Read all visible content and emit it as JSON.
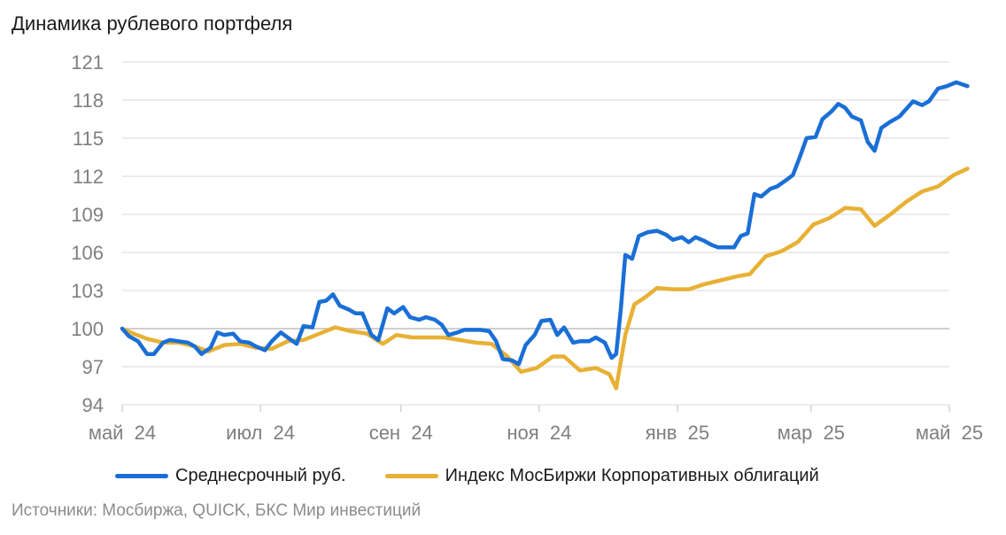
{
  "title": "Динамика рублевого портфеля",
  "source": "Источники: Мосбиржа, QUICK, БКС Мир инвестиций",
  "colors": {
    "series1": "#1a6fd6",
    "series2": "#e8b135",
    "grid": "#d9d9d9"
  },
  "chart_data": {
    "type": "line",
    "grid": true,
    "legend_placement": "bottom",
    "ylim": [
      94,
      121
    ],
    "yticks": [
      94,
      97,
      100,
      103,
      106,
      109,
      112,
      115,
      118,
      121
    ],
    "xlim": [
      "2024-05-01",
      "2025-05-01"
    ],
    "xticks": [
      {
        "date": "2024-05-01",
        "label": "май  24"
      },
      {
        "date": "2024-07-01",
        "label": "июл  24"
      },
      {
        "date": "2024-09-01",
        "label": "сен  24"
      },
      {
        "date": "2024-11-01",
        "label": "ноя  24"
      },
      {
        "date": "2025-01-01",
        "label": "янв  25"
      },
      {
        "date": "2025-03-01",
        "label": "мар  25"
      },
      {
        "date": "2025-05-01",
        "label": "май  25"
      }
    ],
    "series": [
      {
        "name": "Среднесрочный руб.",
        "points": [
          [
            "2024-05-01",
            100.0
          ],
          [
            "2024-05-04",
            99.4
          ],
          [
            "2024-05-08",
            99.0
          ],
          [
            "2024-05-12",
            98.0
          ],
          [
            "2024-05-15",
            98.0
          ],
          [
            "2024-05-19",
            98.9
          ],
          [
            "2024-05-22",
            99.1
          ],
          [
            "2024-05-26",
            99.0
          ],
          [
            "2024-05-30",
            98.9
          ],
          [
            "2024-06-02",
            98.6
          ],
          [
            "2024-06-05",
            98.0
          ],
          [
            "2024-06-09",
            98.5
          ],
          [
            "2024-06-12",
            99.7
          ],
          [
            "2024-06-15",
            99.5
          ],
          [
            "2024-06-19",
            99.6
          ],
          [
            "2024-06-22",
            99.0
          ],
          [
            "2024-06-26",
            98.9
          ],
          [
            "2024-06-29",
            98.6
          ],
          [
            "2024-07-03",
            98.3
          ],
          [
            "2024-07-06",
            99.0
          ],
          [
            "2024-07-10",
            99.7
          ],
          [
            "2024-07-13",
            99.3
          ],
          [
            "2024-07-17",
            98.8
          ],
          [
            "2024-07-20",
            100.2
          ],
          [
            "2024-07-24",
            100.1
          ],
          [
            "2024-07-27",
            102.1
          ],
          [
            "2024-07-30",
            102.2
          ],
          [
            "2024-08-02",
            102.7
          ],
          [
            "2024-08-05",
            101.8
          ],
          [
            "2024-08-09",
            101.5
          ],
          [
            "2024-08-12",
            101.2
          ],
          [
            "2024-08-15",
            101.2
          ],
          [
            "2024-08-19",
            99.5
          ],
          [
            "2024-08-22",
            99.1
          ],
          [
            "2024-08-26",
            101.6
          ],
          [
            "2024-08-29",
            101.2
          ],
          [
            "2024-09-02",
            101.7
          ],
          [
            "2024-09-05",
            100.9
          ],
          [
            "2024-09-09",
            100.7
          ],
          [
            "2024-09-12",
            100.9
          ],
          [
            "2024-09-16",
            100.7
          ],
          [
            "2024-09-19",
            100.3
          ],
          [
            "2024-09-22",
            99.5
          ],
          [
            "2024-09-26",
            99.7
          ],
          [
            "2024-09-29",
            99.9
          ],
          [
            "2024-10-03",
            99.9
          ],
          [
            "2024-10-06",
            99.9
          ],
          [
            "2024-10-10",
            99.8
          ],
          [
            "2024-10-13",
            99.0
          ],
          [
            "2024-10-16",
            97.6
          ],
          [
            "2024-10-20",
            97.5
          ],
          [
            "2024-10-23",
            97.2
          ],
          [
            "2024-10-26",
            98.7
          ],
          [
            "2024-10-30",
            99.5
          ],
          [
            "2024-11-02",
            100.6
          ],
          [
            "2024-11-06",
            100.7
          ],
          [
            "2024-11-09",
            99.5
          ],
          [
            "2024-11-12",
            100.1
          ],
          [
            "2024-11-16",
            98.9
          ],
          [
            "2024-11-19",
            99.0
          ],
          [
            "2024-11-23",
            99.0
          ],
          [
            "2024-11-26",
            99.3
          ],
          [
            "2024-11-30",
            98.9
          ],
          [
            "2024-12-03",
            97.7
          ],
          [
            "2024-12-05",
            98.0
          ],
          [
            "2024-12-07",
            101.5
          ],
          [
            "2024-12-09",
            105.8
          ],
          [
            "2024-12-12",
            105.5
          ],
          [
            "2024-12-15",
            107.3
          ],
          [
            "2024-12-19",
            107.6
          ],
          [
            "2024-12-23",
            107.7
          ],
          [
            "2024-12-27",
            107.4
          ],
          [
            "2024-12-30",
            107.0
          ],
          [
            "2025-01-03",
            107.2
          ],
          [
            "2025-01-06",
            106.8
          ],
          [
            "2025-01-09",
            107.2
          ],
          [
            "2025-01-13",
            106.9
          ],
          [
            "2025-01-16",
            106.6
          ],
          [
            "2025-01-19",
            106.4
          ],
          [
            "2025-01-22",
            106.4
          ],
          [
            "2025-01-26",
            106.4
          ],
          [
            "2025-01-29",
            107.3
          ],
          [
            "2025-02-01",
            107.5
          ],
          [
            "2025-02-04",
            110.6
          ],
          [
            "2025-02-07",
            110.4
          ],
          [
            "2025-02-11",
            111.0
          ],
          [
            "2025-02-14",
            111.2
          ],
          [
            "2025-02-18",
            111.7
          ],
          [
            "2025-02-21",
            112.1
          ],
          [
            "2025-02-24",
            113.5
          ],
          [
            "2025-02-27",
            115.0
          ],
          [
            "2025-03-03",
            115.1
          ],
          [
            "2025-03-06",
            116.5
          ],
          [
            "2025-03-10",
            117.1
          ],
          [
            "2025-03-13",
            117.7
          ],
          [
            "2025-03-16",
            117.4
          ],
          [
            "2025-03-19",
            116.7
          ],
          [
            "2025-03-23",
            116.4
          ],
          [
            "2025-03-26",
            114.7
          ],
          [
            "2025-03-29",
            114.0
          ],
          [
            "2025-04-01",
            115.8
          ],
          [
            "2025-04-05",
            116.3
          ],
          [
            "2025-04-09",
            116.7
          ],
          [
            "2025-04-12",
            117.3
          ],
          [
            "2025-04-15",
            117.9
          ],
          [
            "2025-04-19",
            117.6
          ],
          [
            "2025-04-22",
            117.9
          ],
          [
            "2025-04-26",
            118.9
          ],
          [
            "2025-04-30",
            119.1
          ],
          [
            "2025-05-04",
            119.4
          ],
          [
            "2025-05-09",
            119.1
          ]
        ]
      },
      {
        "name": "Индекс МосБиржи Корпоративных облигаций",
        "points": [
          [
            "2024-05-01",
            100.0
          ],
          [
            "2024-05-06",
            99.6
          ],
          [
            "2024-05-12",
            99.2
          ],
          [
            "2024-05-19",
            98.9
          ],
          [
            "2024-05-26",
            98.9
          ],
          [
            "2024-06-02",
            98.6
          ],
          [
            "2024-06-08",
            98.2
          ],
          [
            "2024-06-15",
            98.7
          ],
          [
            "2024-06-22",
            98.8
          ],
          [
            "2024-06-29",
            98.5
          ],
          [
            "2024-07-06",
            98.4
          ],
          [
            "2024-07-13",
            99.0
          ],
          [
            "2024-07-20",
            99.1
          ],
          [
            "2024-07-27",
            99.6
          ],
          [
            "2024-08-03",
            100.1
          ],
          [
            "2024-08-10",
            99.8
          ],
          [
            "2024-08-17",
            99.6
          ],
          [
            "2024-08-24",
            98.8
          ],
          [
            "2024-08-30",
            99.5
          ],
          [
            "2024-09-06",
            99.3
          ],
          [
            "2024-09-13",
            99.3
          ],
          [
            "2024-09-20",
            99.3
          ],
          [
            "2024-09-27",
            99.1
          ],
          [
            "2024-10-04",
            98.9
          ],
          [
            "2024-10-11",
            98.8
          ],
          [
            "2024-10-18",
            97.8
          ],
          [
            "2024-10-24",
            96.6
          ],
          [
            "2024-10-31",
            96.9
          ],
          [
            "2024-11-07",
            97.8
          ],
          [
            "2024-11-12",
            97.8
          ],
          [
            "2024-11-19",
            96.7
          ],
          [
            "2024-11-26",
            96.9
          ],
          [
            "2024-12-02",
            96.4
          ],
          [
            "2024-12-05",
            95.3
          ],
          [
            "2024-12-09",
            99.5
          ],
          [
            "2024-12-13",
            101.9
          ],
          [
            "2024-12-18",
            102.5
          ],
          [
            "2024-12-23",
            103.2
          ],
          [
            "2024-12-30",
            103.1
          ],
          [
            "2025-01-06",
            103.1
          ],
          [
            "2025-01-13",
            103.5
          ],
          [
            "2025-01-20",
            103.8
          ],
          [
            "2025-01-27",
            104.1
          ],
          [
            "2025-02-02",
            104.3
          ],
          [
            "2025-02-09",
            105.7
          ],
          [
            "2025-02-16",
            106.1
          ],
          [
            "2025-02-23",
            106.8
          ],
          [
            "2025-03-02",
            108.2
          ],
          [
            "2025-03-09",
            108.7
          ],
          [
            "2025-03-16",
            109.5
          ],
          [
            "2025-03-23",
            109.4
          ],
          [
            "2025-03-29",
            108.1
          ],
          [
            "2025-04-05",
            109.0
          ],
          [
            "2025-04-12",
            110.0
          ],
          [
            "2025-04-19",
            110.8
          ],
          [
            "2025-04-26",
            111.2
          ],
          [
            "2025-05-03",
            112.1
          ],
          [
            "2025-05-09",
            112.6
          ]
        ]
      }
    ]
  }
}
